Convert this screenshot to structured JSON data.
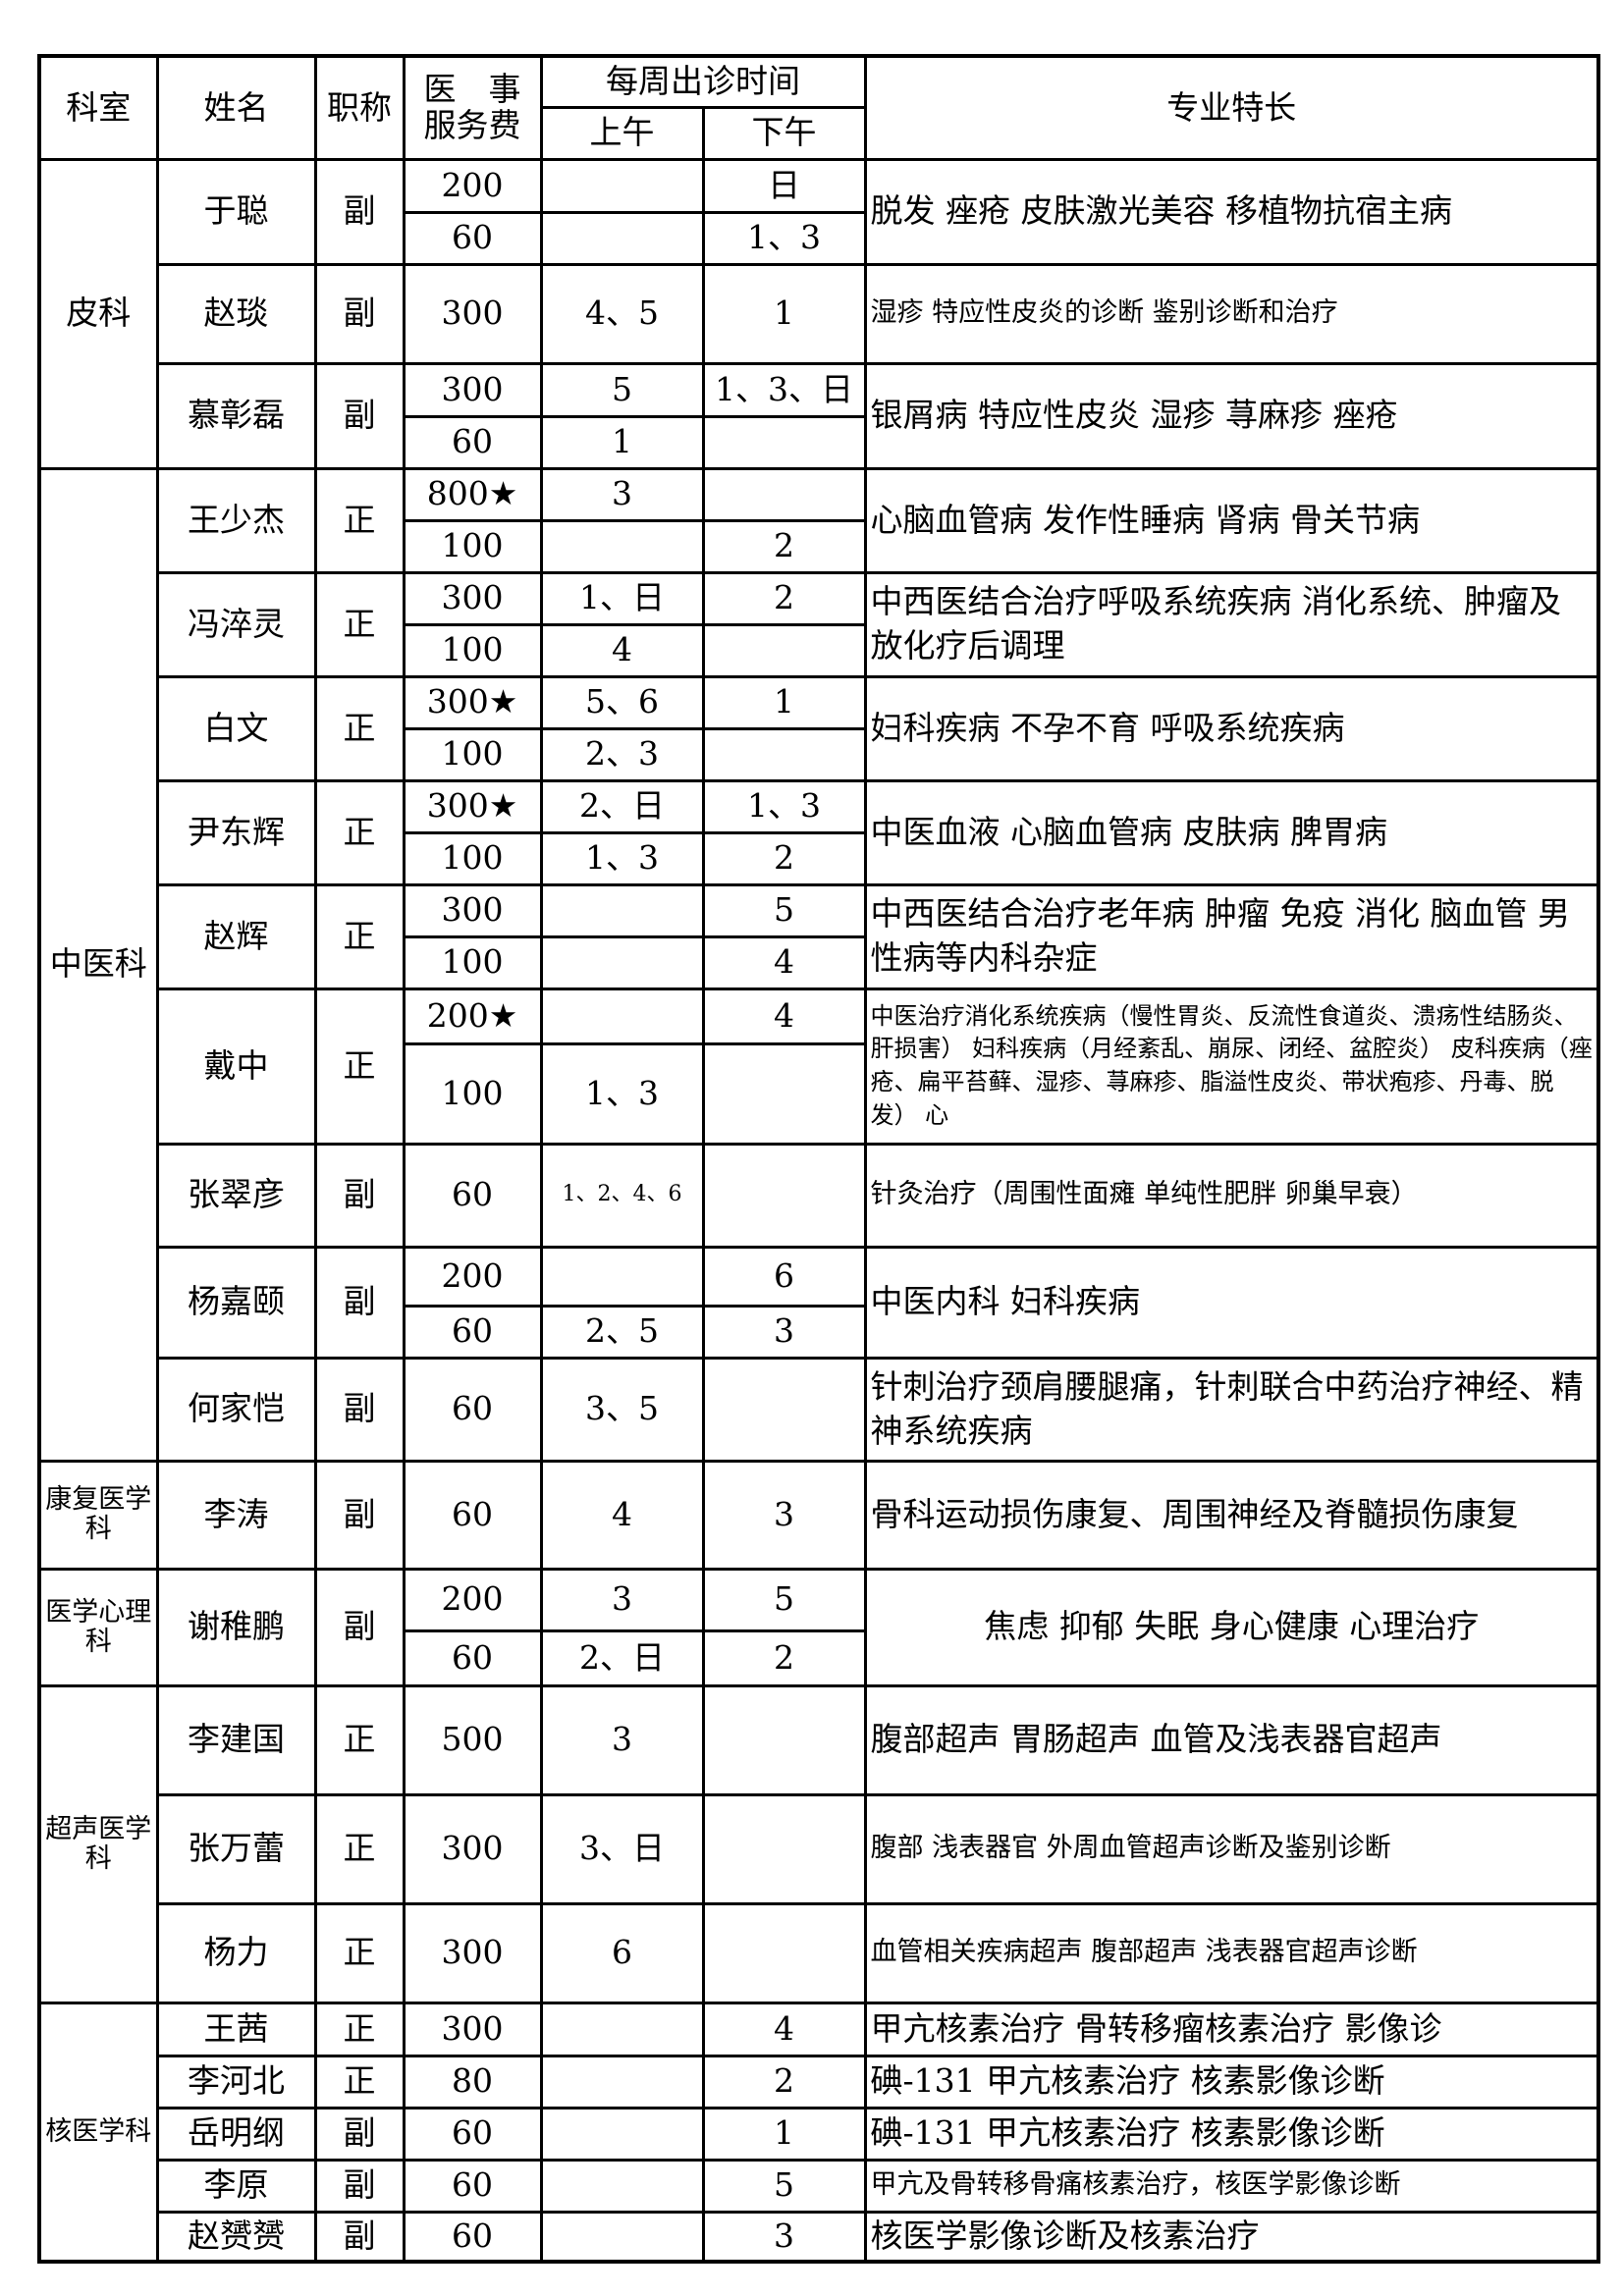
{
  "header": {
    "department": "科室",
    "name": "姓名",
    "title": "职称",
    "fee_line1": "医　事",
    "fee_line2": "服务费",
    "schedule": "每周出诊时间",
    "am": "上午",
    "pm": "下午",
    "specialty": "专业特长"
  },
  "departments": [
    {
      "name": "皮科",
      "doctors": [
        {
          "name": "于聪",
          "title": "副",
          "specialty": "脱发 痤疮 皮肤激光美容 移植物抗宿主病",
          "slots": [
            {
              "fee": "200",
              "am": "",
              "pm": "日"
            },
            {
              "fee": "60",
              "am": "",
              "pm": "1、3"
            }
          ]
        },
        {
          "name": "赵琰",
          "title": "副",
          "specialty": "湿疹 特应性皮炎的诊断 鉴别诊断和治疗",
          "slots": [
            {
              "fee": "300",
              "am": "4、5",
              "pm": "1"
            }
          ]
        },
        {
          "name": "慕彰磊",
          "title": "副",
          "specialty": "银屑病 特应性皮炎 湿疹 荨麻疹 痤疮",
          "slots": [
            {
              "fee": "300",
              "am": "5",
              "pm": "1、3、日"
            },
            {
              "fee": "60",
              "am": "1",
              "pm": ""
            }
          ]
        }
      ]
    },
    {
      "name": "中医科",
      "doctors": [
        {
          "name": "王少杰",
          "title": "正",
          "specialty": "心脑血管病 发作性睡病 肾病 骨关节病",
          "slots": [
            {
              "fee": "800★",
              "am": "3",
              "pm": ""
            },
            {
              "fee": "100",
              "am": "",
              "pm": "2"
            }
          ]
        },
        {
          "name": "冯淬灵",
          "title": "正",
          "specialty": "中西医结合治疗呼吸系统疾病 消化系统、肿瘤及放化疗后调理",
          "slots": [
            {
              "fee": "300",
              "am": "1、日",
              "pm": "2"
            },
            {
              "fee": "100",
              "am": "4",
              "pm": ""
            }
          ]
        },
        {
          "name": "白文",
          "title": "正",
          "specialty": "妇科疾病 不孕不育 呼吸系统疾病",
          "slots": [
            {
              "fee": "300★",
              "am": "5、6",
              "pm": "1"
            },
            {
              "fee": "100",
              "am": "2、3",
              "pm": ""
            }
          ]
        },
        {
          "name": "尹东辉",
          "title": "正",
          "specialty": "中医血液 心脑血管病 皮肤病 脾胃病",
          "slots": [
            {
              "fee": "300★",
              "am": "2、日",
              "pm": "1、3"
            },
            {
              "fee": "100",
              "am": "1、3",
              "pm": "2"
            }
          ]
        },
        {
          "name": "赵辉",
          "title": "正",
          "specialty": "中西医结合治疗老年病 肿瘤 免疫 消化 脑血管 男性病等内科杂症",
          "slots": [
            {
              "fee": "300",
              "am": "",
              "pm": "5"
            },
            {
              "fee": "100",
              "am": "",
              "pm": "4"
            }
          ]
        },
        {
          "name": "戴中",
          "title": "正",
          "specialty": "中医治疗消化系统疾病（慢性胃炎、反流性食道炎、溃疡性结肠炎、肝损害） 妇科疾病（月经紊乱、崩尿、闭经、盆腔炎） 皮科疾病（痤疮、扁平苔藓、湿疹、荨麻疹、脂溢性皮炎、带状疱疹、丹毒、脱发） 心",
          "slots": [
            {
              "fee": "200★",
              "am": "",
              "pm": "4"
            },
            {
              "fee": "100",
              "am": "1、3",
              "pm": ""
            }
          ]
        },
        {
          "name": "张翠彦",
          "title": "副",
          "specialty": "针灸治疗（周围性面瘫 单纯性肥胖 卵巢早衰）",
          "slots": [
            {
              "fee": "60",
              "am": "1、2、4、6",
              "pm": ""
            }
          ]
        },
        {
          "name": "杨嘉颐",
          "title": "副",
          "specialty": "中医内科 妇科疾病",
          "slots": [
            {
              "fee": "200",
              "am": "",
              "pm": "6"
            },
            {
              "fee": "60",
              "am": "2、5",
              "pm": "3"
            }
          ]
        },
        {
          "name": "何家恺",
          "title": "副",
          "specialty": "针刺治疗颈肩腰腿痛，针刺联合中药治疗神经、精神系统疾病",
          "slots": [
            {
              "fee": "60",
              "am": "3、5",
              "pm": ""
            }
          ]
        }
      ]
    },
    {
      "name": "康复医学科",
      "doctors": [
        {
          "name": "李涛",
          "title": "副",
          "specialty": "骨科运动损伤康复、周围神经及脊髓损伤康复",
          "slots": [
            {
              "fee": "60",
              "am": "4",
              "pm": "3"
            }
          ]
        }
      ]
    },
    {
      "name": "医学心理科",
      "doctors": [
        {
          "name": "谢稚鹏",
          "title": "副",
          "specialty": "焦虑 抑郁 失眠 身心健康 心理治疗",
          "slots": [
            {
              "fee": "200",
              "am": "3",
              "pm": "5"
            },
            {
              "fee": "60",
              "am": "2、日",
              "pm": "2"
            }
          ]
        }
      ]
    },
    {
      "name": "超声医学科",
      "doctors": [
        {
          "name": "李建国",
          "title": "正",
          "specialty": "腹部超声 胃肠超声 血管及浅表器官超声",
          "slots": [
            {
              "fee": "500",
              "am": "3",
              "pm": ""
            }
          ]
        },
        {
          "name": "张万蕾",
          "title": "正",
          "specialty": "腹部 浅表器官 外周血管超声诊断及鉴别诊断",
          "slots": [
            {
              "fee": "300",
              "am": "3、日",
              "pm": ""
            }
          ]
        },
        {
          "name": "杨力",
          "title": "正",
          "specialty": "血管相关疾病超声 腹部超声 浅表器官超声诊断",
          "slots": [
            {
              "fee": "300",
              "am": "6",
              "pm": ""
            }
          ]
        }
      ]
    },
    {
      "name": "核医学科",
      "doctors": [
        {
          "name": "王茜",
          "title": "正",
          "specialty": "甲亢核素治疗 骨转移瘤核素治疗 影像诊",
          "slots": [
            {
              "fee": "300",
              "am": "",
              "pm": "4"
            }
          ]
        },
        {
          "name": "李河北",
          "title": "正",
          "specialty": "碘-131 甲亢核素治疗 核素影像诊断",
          "slots": [
            {
              "fee": "80",
              "am": "",
              "pm": "2"
            }
          ]
        },
        {
          "name": "岳明纲",
          "title": "副",
          "specialty": "碘-131 甲亢核素治疗 核素影像诊断",
          "slots": [
            {
              "fee": "60",
              "am": "",
              "pm": "1"
            }
          ]
        },
        {
          "name": "李原",
          "title": "副",
          "specialty": "甲亢及骨转移骨痛核素治疗，核医学影像诊断",
          "slots": [
            {
              "fee": "60",
              "am": "",
              "pm": "5"
            }
          ]
        },
        {
          "name": "赵赟赟",
          "title": "副",
          "specialty": "核医学影像诊断及核素治疗",
          "slots": [
            {
              "fee": "60",
              "am": "",
              "pm": "3"
            }
          ]
        }
      ]
    }
  ]
}
